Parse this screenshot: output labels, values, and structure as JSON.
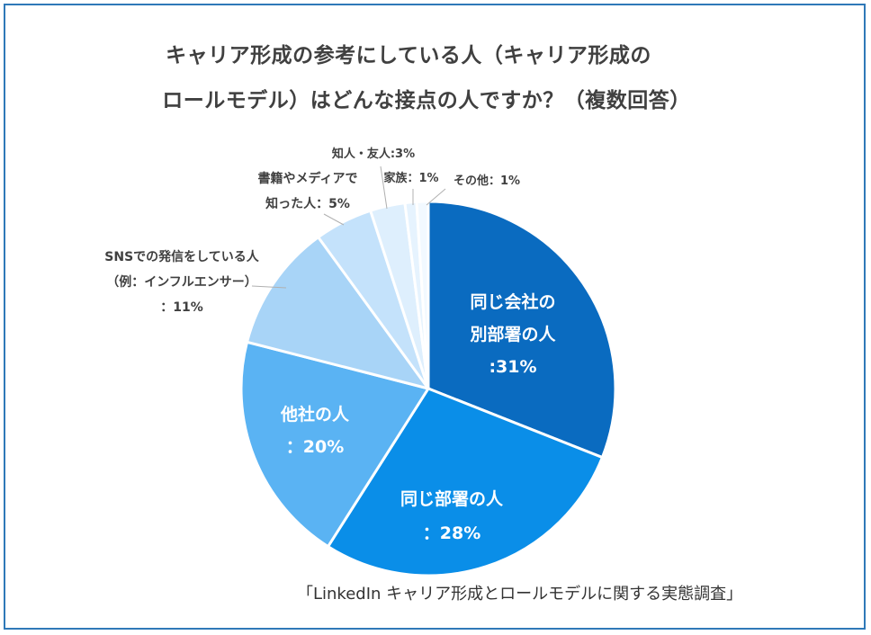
{
  "title": {
    "line1": "キャリア形成の参考にしている人（キャリア形成の",
    "line2": "ロールモデル）はどんな接点の人ですか？（複数回答）"
  },
  "source": "「LinkedIn キャリア形成とロールモデルに関する実態調査」",
  "colors": {
    "frame": "#2f79b8",
    "slice_dark": "#0a6bc0",
    "slice_mid": "#0a8ee8",
    "slice_light": "#5ab3f3",
    "slice_pale": "#a8d4f7",
    "slice_paler": "#c4e2fb",
    "slice_palest": "#deeffd",
    "slice_white": "#eef7fe"
  },
  "chart_data": {
    "type": "pie",
    "title": "キャリア形成の参考にしている人（キャリア形成のロールモデル）はどんな接点の人ですか？（複数回答）",
    "unit": "%",
    "slices": [
      {
        "label_lines": [
          "同じ会社の",
          "別部署の人",
          ":31%"
        ],
        "value": 31,
        "color": "#0a6bc0",
        "label_color": "#ffffff"
      },
      {
        "label_lines": [
          "同じ部署の人",
          "：28%"
        ],
        "value": 28,
        "color": "#0a8ee8",
        "label_color": "#ffffff"
      },
      {
        "label_lines": [
          "他社の人",
          "：20%"
        ],
        "value": 20,
        "color": "#5ab3f3",
        "label_color": "#ffffff"
      },
      {
        "label_lines": [
          "SNSでの発信をしている人",
          "（例：インフルエンサー）",
          "：11%"
        ],
        "value": 11,
        "color": "#a8d4f7",
        "label_color": "#404040"
      },
      {
        "label_lines": [
          "書籍やメディアで",
          "知った人：5%"
        ],
        "value": 5,
        "color": "#c4e2fb",
        "label_color": "#404040"
      },
      {
        "label_lines": [
          "知人・友人:3%"
        ],
        "value": 3,
        "color": "#deeffd",
        "label_color": "#404040"
      },
      {
        "label_lines": [
          "家族：1%"
        ],
        "value": 1,
        "color": "#e6f3fe",
        "label_color": "#404040"
      },
      {
        "label_lines": [
          "その他：1%"
        ],
        "value": 1,
        "color": "#f2f9ff",
        "label_color": "#404040"
      }
    ]
  }
}
